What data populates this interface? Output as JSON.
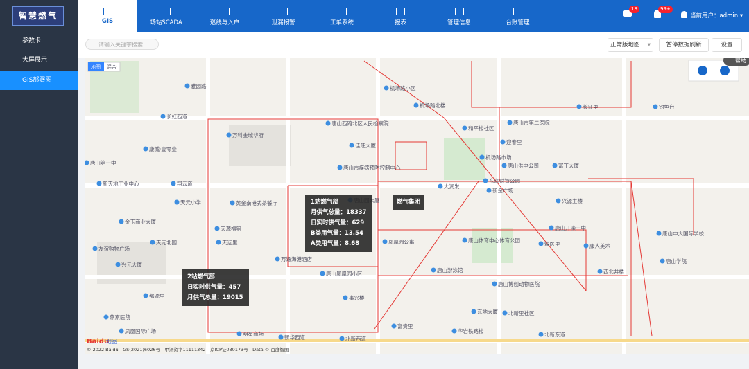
{
  "sidebar": {
    "logo": "智慧燃气",
    "menu": [
      "参数卡",
      "大屏展示",
      "GIS部署图"
    ]
  },
  "nav": {
    "items": [
      "GIS",
      "场站SCADA",
      "巡线与入户",
      "泄漏报警",
      "工单系统",
      "报表",
      "管理信息",
      "台账管理"
    ]
  },
  "header": {
    "message_badge": "18",
    "alarm_badge": "99+",
    "user": "当前用户：admin"
  },
  "toolbar": {
    "search_placeholder": "请输入关键字搜索",
    "map_style": "正常版地图",
    "pause_button": "暂停数据刷新",
    "settings_button": "设置"
  },
  "map": {
    "toggle": [
      "地图",
      "混合"
    ],
    "help": "帮助",
    "labels": [
      "雅园路",
      "长虹西道",
      "万科金域华府",
      "康城·壹零壹",
      "唐山第一中",
      "新天地工业中心",
      "翔云道",
      "天元小学",
      "黄金南港式茶餐厅",
      "金玉商业大厦",
      "天源福第",
      "天远里",
      "友谊购物广场",
      "天元北园",
      "兴元大厦",
      "万逸海港酒店",
      "唐山凤凰园小区",
      "事兴楼",
      "都源里",
      "燕京医院",
      "凤凰国际广场",
      "明星商场",
      "新华西道",
      "北新西道",
      "北新东道",
      "富贵里",
      "华岩铁路楼",
      "东地大厦",
      "北新里社区",
      "唐山市第二医院",
      "机场路小区",
      "机场路北楼",
      "和平楼社区",
      "迎春里",
      "机场路市场",
      "唐山供电公司",
      "富丁大厦",
      "东润财智公园",
      "新金广场",
      "兴源主楼",
      "唐山开滦一中",
      "煤医里",
      "康人美术",
      "唐山中大国际学校",
      "唐山学院",
      "西北井楼",
      "唐山博创动物医院",
      "长征里",
      "钓鱼台",
      "唐山西路北区人民检察院",
      "佳旺大厦",
      "唐山市疾病预防控制中心",
      "唐山园大厦",
      "凤凰园公寓",
      "大润发",
      "唐山体育中心体育公园",
      "唐山游泳馆"
    ],
    "stations": [
      {
        "title": "1站燃气部",
        "lines": [
          "月供气总量：18337",
          "日实时供气量：629",
          "B类用气量：13.54",
          "A类用气量：8.68"
        ]
      },
      {
        "title": "2站燃气部",
        "lines": [
          "日实时供气量：457",
          "月供气总量：19015"
        ]
      }
    ],
    "group_label": "燃气集团",
    "logo": [
      "Baidu",
      "地图"
    ],
    "copyright": "© 2022 Baidu - GS(2021)6026号 - 甲测资字11111342 - 京ICP证030173号 - Data © 百度智图"
  }
}
